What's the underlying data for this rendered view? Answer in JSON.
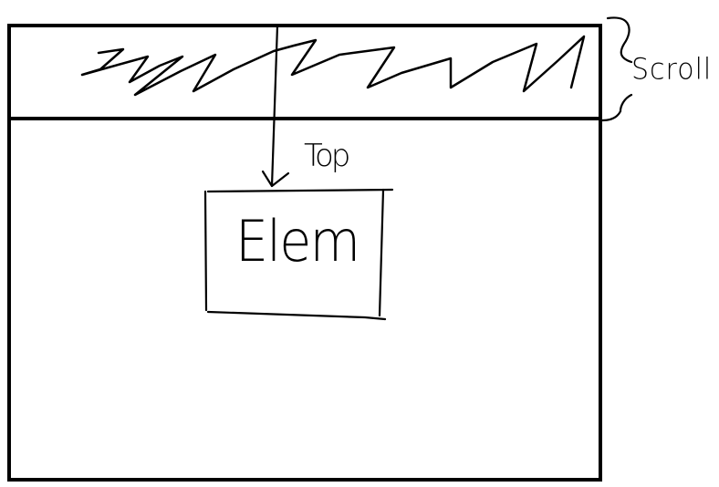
{
  "labels": {
    "scroll": "Scroll",
    "top": "Top",
    "elem": "Elem"
  },
  "colors": {
    "ink": "#000000",
    "background": "#ffffff"
  }
}
